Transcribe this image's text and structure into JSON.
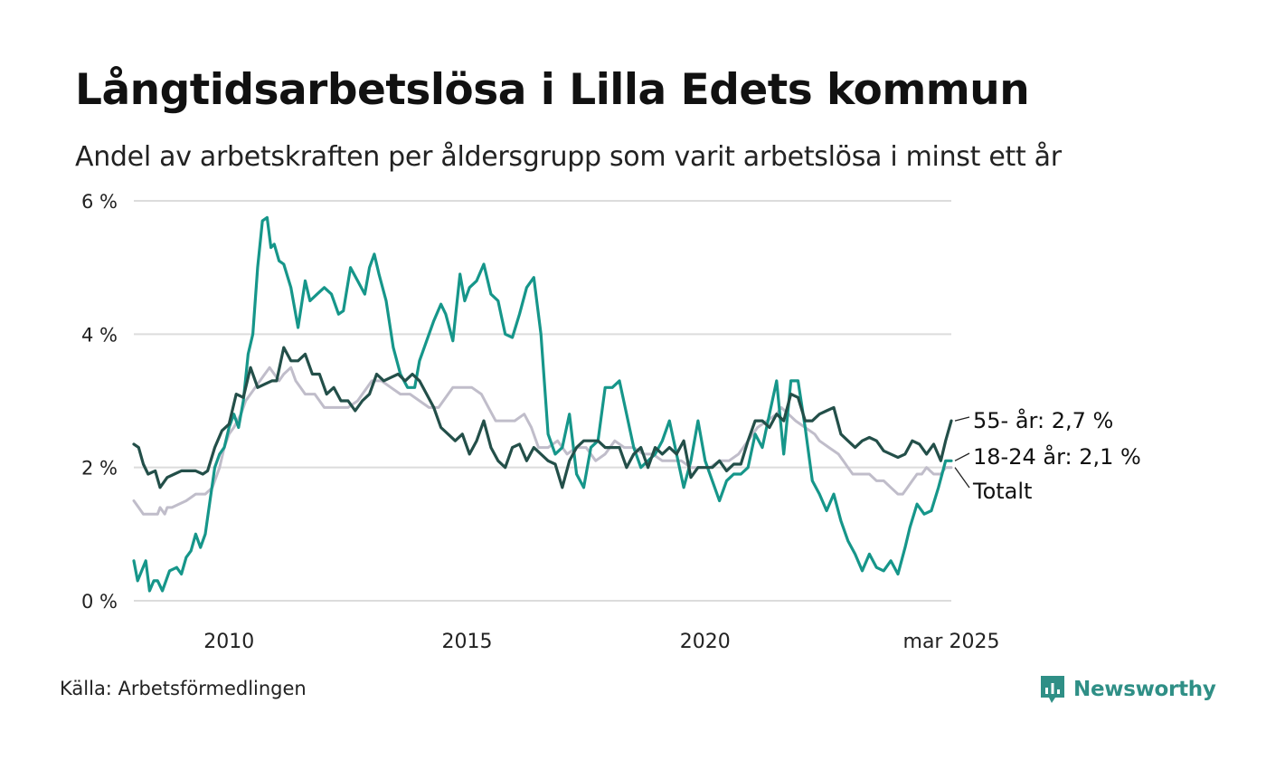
{
  "title": "Långtidsarbetslösa i Lilla Edets kommun",
  "subtitle": "Andel av arbetskraften per åldersgrupp som varit arbetslösa i minst ett år",
  "source": "Källa: Arbetsförmedlingen",
  "brand": "Newsworthy",
  "colors": {
    "age55": "#234f49",
    "age18_24": "#16968a",
    "total": "#c0bdca",
    "grid": "#dcdcdc",
    "brand": "#2f8f86"
  },
  "chart_data": {
    "type": "line",
    "title": "Långtidsarbetslösa i Lilla Edets kommun",
    "xlabel": "",
    "ylabel": "",
    "xlim": [
      2008.0,
      2025.17
    ],
    "ylim": [
      0,
      6
    ],
    "grid": true,
    "yticks": [
      {
        "value": 0,
        "label": "0 %"
      },
      {
        "value": 2,
        "label": "2 %"
      },
      {
        "value": 4,
        "label": "4 %"
      },
      {
        "value": 6,
        "label": "6 %"
      }
    ],
    "xticks": [
      {
        "value": 2010,
        "label": "2010"
      },
      {
        "value": 2015,
        "label": "2015"
      },
      {
        "value": 2020,
        "label": "2020"
      },
      {
        "value": 2025.17,
        "label": "mar 2025"
      }
    ],
    "series": [
      {
        "name": "Totalt",
        "key": "total",
        "end_label": "Totalt",
        "x": [
          2008.0,
          2008.1,
          2008.2,
          2008.5,
          2008.55,
          2008.65,
          2008.7,
          2008.8,
          2009.1,
          2009.3,
          2009.5,
          2009.65,
          2009.8,
          2009.9,
          2010.0,
          2010.1,
          2010.25,
          2010.35,
          2010.45,
          2010.55,
          2010.65,
          2010.75,
          2010.85,
          2010.95,
          2011.05,
          2011.15,
          2011.3,
          2011.4,
          2011.5,
          2011.6,
          2011.8,
          2012.0,
          2012.1,
          2012.3,
          2012.5,
          2012.7,
          2012.8,
          2012.9,
          2013.0,
          2013.2,
          2013.4,
          2013.6,
          2013.8,
          2014.0,
          2014.2,
          2014.4,
          2014.7,
          2014.9,
          2015.1,
          2015.3,
          2015.45,
          2015.6,
          2015.8,
          2016.0,
          2016.2,
          2016.35,
          2016.5,
          2016.7,
          2016.9,
          2017.1,
          2017.3,
          2017.5,
          2017.7,
          2017.9,
          2018.1,
          2018.3,
          2018.5,
          2018.7,
          2018.9,
          2019.1,
          2019.3,
          2019.5,
          2019.7,
          2019.9,
          2020.1,
          2020.3,
          2020.5,
          2020.7,
          2020.9,
          2021.1,
          2021.3,
          2021.5,
          2021.6,
          2021.75,
          2021.9,
          2022.1,
          2022.3,
          2022.4,
          2022.6,
          2022.8,
          2022.9,
          2023.0,
          2023.1,
          2023.3,
          2023.45,
          2023.6,
          2023.75,
          2023.9,
          2024.05,
          2024.15,
          2024.25,
          2024.35,
          2024.45,
          2024.55,
          2024.65,
          2024.8,
          2024.95,
          2025.05,
          2025.17
        ],
        "values": [
          1.5,
          1.4,
          1.3,
          1.3,
          1.4,
          1.3,
          1.4,
          1.4,
          1.5,
          1.6,
          1.6,
          1.7,
          2.0,
          2.3,
          2.5,
          2.6,
          2.8,
          3.0,
          3.1,
          3.2,
          3.3,
          3.4,
          3.5,
          3.4,
          3.3,
          3.4,
          3.5,
          3.3,
          3.2,
          3.1,
          3.1,
          2.9,
          2.9,
          2.9,
          2.9,
          3.0,
          3.1,
          3.2,
          3.3,
          3.3,
          3.2,
          3.1,
          3.1,
          3.0,
          2.9,
          2.9,
          3.2,
          3.2,
          3.2,
          3.1,
          2.9,
          2.7,
          2.7,
          2.7,
          2.8,
          2.6,
          2.3,
          2.3,
          2.4,
          2.2,
          2.3,
          2.3,
          2.1,
          2.2,
          2.4,
          2.3,
          2.3,
          2.2,
          2.2,
          2.1,
          2.1,
          2.1,
          2.0,
          2.0,
          2.0,
          2.1,
          2.1,
          2.2,
          2.4,
          2.6,
          2.7,
          2.8,
          2.9,
          2.8,
          2.7,
          2.6,
          2.5,
          2.4,
          2.3,
          2.2,
          2.1,
          2.0,
          1.9,
          1.9,
          1.9,
          1.8,
          1.8,
          1.7,
          1.6,
          1.6,
          1.7,
          1.8,
          1.9,
          1.9,
          2.0,
          1.9,
          1.9,
          2.0,
          2.0
        ]
      },
      {
        "name": "18-24 år",
        "key": "age18_24",
        "end_label": "18-24 år: 2,1 %",
        "x": [
          2008.0,
          2008.08,
          2008.25,
          2008.33,
          2008.42,
          2008.5,
          2008.6,
          2008.75,
          2008.9,
          2009.0,
          2009.1,
          2009.2,
          2009.3,
          2009.4,
          2009.5,
          2009.6,
          2009.7,
          2009.8,
          2009.9,
          2010.0,
          2010.1,
          2010.2,
          2010.3,
          2010.4,
          2010.5,
          2010.6,
          2010.7,
          2010.8,
          2010.88,
          2010.95,
          2011.05,
          2011.15,
          2011.3,
          2011.45,
          2011.6,
          2011.7,
          2011.85,
          2012.0,
          2012.15,
          2012.3,
          2012.4,
          2012.55,
          2012.7,
          2012.85,
          2012.95,
          2013.05,
          2013.15,
          2013.3,
          2013.45,
          2013.6,
          2013.75,
          2013.9,
          2014.0,
          2014.15,
          2014.3,
          2014.45,
          2014.55,
          2014.7,
          2014.85,
          2014.95,
          2015.05,
          2015.2,
          2015.35,
          2015.5,
          2015.65,
          2015.8,
          2015.95,
          2016.1,
          2016.25,
          2016.4,
          2016.55,
          2016.7,
          2016.85,
          2017.0,
          2017.15,
          2017.3,
          2017.45,
          2017.6,
          2017.75,
          2017.9,
          2018.05,
          2018.2,
          2018.35,
          2018.5,
          2018.65,
          2018.8,
          2018.95,
          2019.1,
          2019.25,
          2019.4,
          2019.55,
          2019.7,
          2019.85,
          2020.0,
          2020.15,
          2020.3,
          2020.45,
          2020.6,
          2020.75,
          2020.9,
          2021.05,
          2021.2,
          2021.35,
          2021.5,
          2021.65,
          2021.8,
          2021.95,
          2022.1,
          2022.25,
          2022.4,
          2022.55,
          2022.7,
          2022.85,
          2023.0,
          2023.15,
          2023.3,
          2023.45,
          2023.6,
          2023.75,
          2023.9,
          2024.05,
          2024.2,
          2024.3,
          2024.45,
          2024.6,
          2024.75,
          2024.9,
          2025.05,
          2025.17
        ],
        "values": [
          0.6,
          0.3,
          0.6,
          0.15,
          0.3,
          0.3,
          0.15,
          0.45,
          0.5,
          0.4,
          0.65,
          0.75,
          1.0,
          0.8,
          1.0,
          1.5,
          2.0,
          2.2,
          2.3,
          2.6,
          2.8,
          2.6,
          3.0,
          3.7,
          4.0,
          5.0,
          5.7,
          5.75,
          5.3,
          5.35,
          5.1,
          5.05,
          4.7,
          4.1,
          4.8,
          4.5,
          4.6,
          4.7,
          4.6,
          4.3,
          4.35,
          5.0,
          4.8,
          4.6,
          5.0,
          5.2,
          4.9,
          4.5,
          3.8,
          3.4,
          3.2,
          3.2,
          3.6,
          3.9,
          4.2,
          4.45,
          4.3,
          3.9,
          4.9,
          4.5,
          4.7,
          4.8,
          5.05,
          4.6,
          4.5,
          4.0,
          3.95,
          4.3,
          4.7,
          4.85,
          4.0,
          2.5,
          2.2,
          2.3,
          2.8,
          1.9,
          1.7,
          2.3,
          2.4,
          3.2,
          3.2,
          3.3,
          2.8,
          2.3,
          2.0,
          2.1,
          2.2,
          2.4,
          2.7,
          2.2,
          1.7,
          2.1,
          2.7,
          2.1,
          1.8,
          1.5,
          1.8,
          1.9,
          1.9,
          2.0,
          2.5,
          2.3,
          2.8,
          3.3,
          2.2,
          3.3,
          3.3,
          2.6,
          1.8,
          1.6,
          1.35,
          1.6,
          1.2,
          0.9,
          0.7,
          0.45,
          0.7,
          0.5,
          0.45,
          0.6,
          0.4,
          0.8,
          1.1,
          1.45,
          1.3,
          1.35,
          1.7,
          2.1,
          2.1
        ]
      },
      {
        "name": "55- år",
        "key": "age55",
        "end_label": "55- år: 2,7 %",
        "x": [
          2008.0,
          2008.1,
          2008.2,
          2008.3,
          2008.45,
          2008.55,
          2008.7,
          2008.85,
          2009.0,
          2009.15,
          2009.3,
          2009.45,
          2009.55,
          2009.7,
          2009.85,
          2010.0,
          2010.15,
          2010.3,
          2010.45,
          2010.6,
          2010.75,
          2010.9,
          2011.0,
          2011.15,
          2011.3,
          2011.45,
          2011.6,
          2011.75,
          2011.9,
          2012.05,
          2012.2,
          2012.35,
          2012.5,
          2012.65,
          2012.8,
          2012.95,
          2013.1,
          2013.25,
          2013.4,
          2013.55,
          2013.7,
          2013.85,
          2014.0,
          2014.15,
          2014.3,
          2014.45,
          2014.6,
          2014.75,
          2014.9,
          2015.05,
          2015.2,
          2015.35,
          2015.5,
          2015.65,
          2015.8,
          2015.95,
          2016.1,
          2016.25,
          2016.4,
          2016.55,
          2016.7,
          2016.85,
          2017.0,
          2017.15,
          2017.3,
          2017.45,
          2017.6,
          2017.75,
          2017.9,
          2018.05,
          2018.2,
          2018.35,
          2018.5,
          2018.65,
          2018.8,
          2018.95,
          2019.1,
          2019.25,
          2019.4,
          2019.55,
          2019.7,
          2019.85,
          2020.0,
          2020.15,
          2020.3,
          2020.45,
          2020.6,
          2020.75,
          2020.9,
          2021.05,
          2021.2,
          2021.35,
          2021.5,
          2021.65,
          2021.8,
          2021.95,
          2022.1,
          2022.25,
          2022.4,
          2022.55,
          2022.7,
          2022.85,
          2023.0,
          2023.15,
          2023.3,
          2023.45,
          2023.6,
          2023.75,
          2023.9,
          2024.05,
          2024.2,
          2024.35,
          2024.5,
          2024.65,
          2024.8,
          2024.95,
          2025.05,
          2025.17
        ],
        "values": [
          2.35,
          2.3,
          2.05,
          1.9,
          1.95,
          1.7,
          1.85,
          1.9,
          1.95,
          1.95,
          1.95,
          1.9,
          1.95,
          2.3,
          2.55,
          2.65,
          3.1,
          3.05,
          3.5,
          3.2,
          3.25,
          3.3,
          3.3,
          3.8,
          3.6,
          3.6,
          3.7,
          3.4,
          3.4,
          3.1,
          3.2,
          3.0,
          3.0,
          2.85,
          3.0,
          3.1,
          3.4,
          3.3,
          3.35,
          3.4,
          3.3,
          3.4,
          3.3,
          3.1,
          2.9,
          2.6,
          2.5,
          2.4,
          2.5,
          2.2,
          2.4,
          2.7,
          2.3,
          2.1,
          2.0,
          2.3,
          2.35,
          2.1,
          2.3,
          2.2,
          2.1,
          2.05,
          1.7,
          2.1,
          2.3,
          2.4,
          2.4,
          2.4,
          2.3,
          2.3,
          2.3,
          2.0,
          2.2,
          2.3,
          2.0,
          2.3,
          2.2,
          2.3,
          2.2,
          2.4,
          1.85,
          2.0,
          2.0,
          2.0,
          2.1,
          1.95,
          2.05,
          2.05,
          2.4,
          2.7,
          2.7,
          2.6,
          2.8,
          2.7,
          3.1,
          3.05,
          2.7,
          2.7,
          2.8,
          2.85,
          2.9,
          2.5,
          2.4,
          2.3,
          2.4,
          2.45,
          2.4,
          2.25,
          2.2,
          2.15,
          2.2,
          2.4,
          2.35,
          2.2,
          2.35,
          2.1,
          2.4,
          2.7
        ]
      }
    ]
  }
}
